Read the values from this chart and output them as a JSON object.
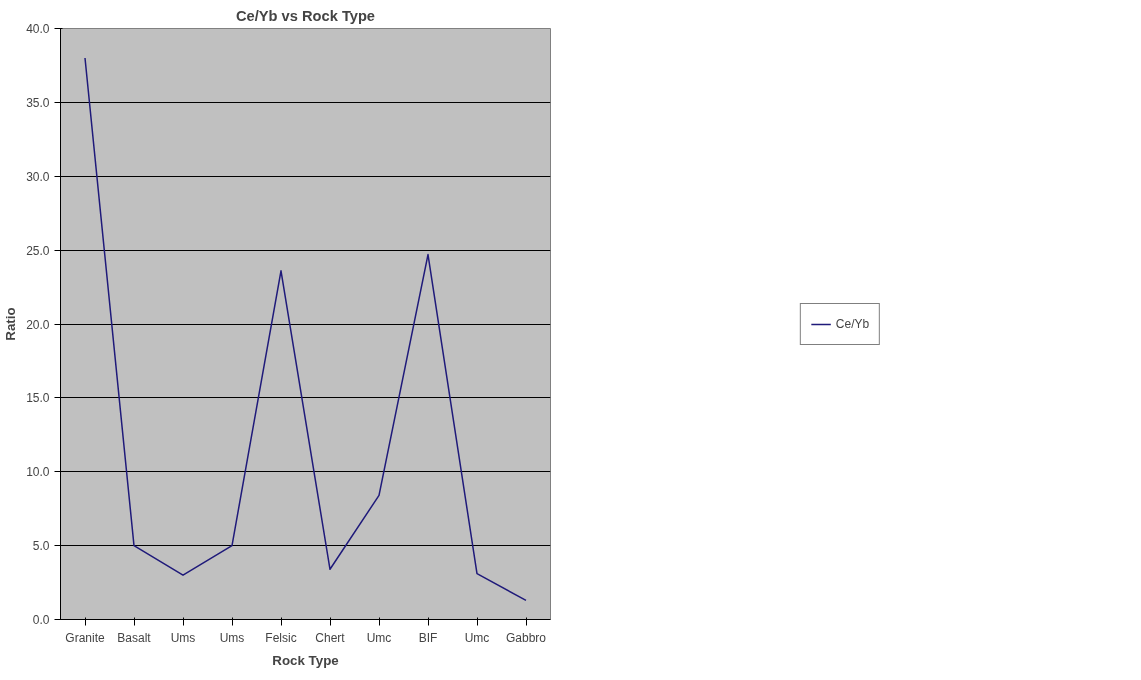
{
  "chart_data": {
    "type": "line",
    "title": "Ce/Yb vs Rock Type",
    "xlabel": "Rock Type",
    "ylabel": "Ratio",
    "categories": [
      "Granite",
      "Basalt",
      "Ums",
      "Ums",
      "Felsic",
      "Chert",
      "Umc",
      "BIF",
      "Umc",
      "Gabbro"
    ],
    "series": [
      {
        "name": "Ce/Yb",
        "color": "#1f1a7a",
        "values": [
          38.0,
          5.0,
          3.0,
          5.0,
          23.6,
          3.4,
          8.4,
          24.7,
          3.1,
          1.3
        ]
      }
    ],
    "ylim": [
      0,
      40
    ],
    "yticks": [
      {
        "value": 0,
        "label": "0.0"
      },
      {
        "value": 5,
        "label": "5.0"
      },
      {
        "value": 10,
        "label": "10.0"
      },
      {
        "value": 15,
        "label": "15.0"
      },
      {
        "value": 20,
        "label": "20.0"
      },
      {
        "value": 25,
        "label": "25.0"
      },
      {
        "value": 30,
        "label": "30.0"
      },
      {
        "value": 35,
        "label": "35.0"
      },
      {
        "value": 40,
        "label": "40.0"
      }
    ],
    "grid": "y",
    "legend": "right",
    "marker": "none",
    "line_style": "solid"
  }
}
